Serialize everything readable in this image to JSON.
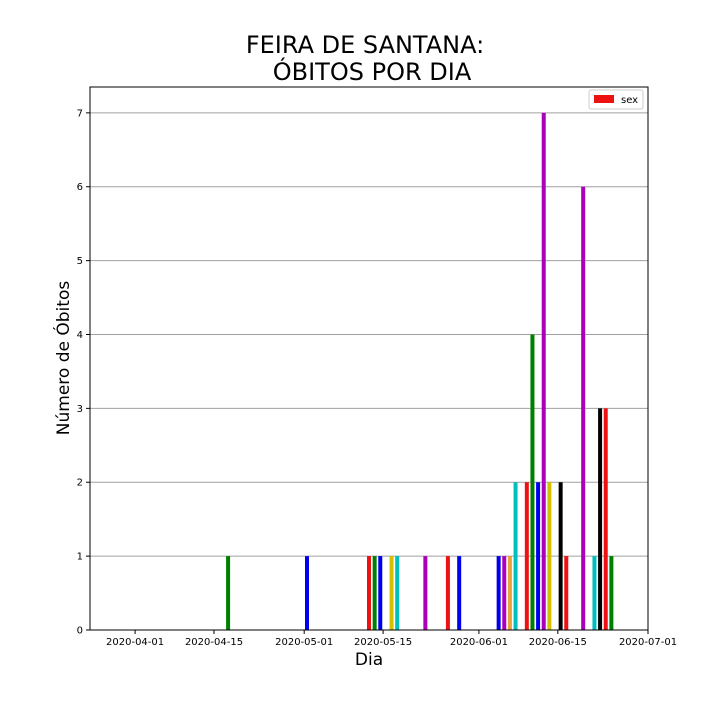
{
  "chart_data": {
    "type": "bar",
    "title_lines": [
      "FEIRA DE SANTANA:",
      "ÓBITOS POR DIA"
    ],
    "xlabel": "Dia",
    "ylabel": "Número de Óbitos",
    "x_ticks": [
      "2020-04-01",
      "2020-04-15",
      "2020-05-01",
      "2020-05-15",
      "2020-06-01",
      "2020-06-15",
      "2020-07-01"
    ],
    "y_ticks": [
      "0",
      "1",
      "2",
      "3",
      "4",
      "5",
      "6",
      "7"
    ],
    "xlim": [
      "2020-03-24",
      "2020-07-01"
    ],
    "ylim": [
      0,
      7.35
    ],
    "grid": "horizontal",
    "legend": {
      "label": "sex",
      "color": "#ee1111",
      "placement": "top-right"
    },
    "bar_colors": {
      "g": "#008000",
      "b": "#0000ee",
      "r": "#ee1111",
      "c": "#00bfbf",
      "m": "#aa00bb",
      "y": "#d4c000",
      "k": "#000000",
      "orange": "#e8a33c"
    },
    "bars": [
      {
        "date": "2020-04-17",
        "value": 1,
        "color": "g"
      },
      {
        "date": "2020-05-01",
        "value": 1,
        "color": "b"
      },
      {
        "date": "2020-05-12",
        "value": 1,
        "color": "r"
      },
      {
        "date": "2020-05-13",
        "value": 1,
        "color": "g"
      },
      {
        "date": "2020-05-14",
        "value": 1,
        "color": "b"
      },
      {
        "date": "2020-05-16",
        "value": 1,
        "color": "y"
      },
      {
        "date": "2020-05-17",
        "value": 1,
        "color": "c"
      },
      {
        "date": "2020-05-22",
        "value": 1,
        "color": "m"
      },
      {
        "date": "2020-05-26",
        "value": 1,
        "color": "r"
      },
      {
        "date": "2020-05-28",
        "value": 1,
        "color": "b"
      },
      {
        "date": "2020-06-04",
        "value": 1,
        "color": "b"
      },
      {
        "date": "2020-06-05",
        "value": 1,
        "color": "m"
      },
      {
        "date": "2020-06-06",
        "value": 1,
        "color": "orange"
      },
      {
        "date": "2020-06-07",
        "value": 2,
        "color": "c"
      },
      {
        "date": "2020-06-09",
        "value": 2,
        "color": "r"
      },
      {
        "date": "2020-06-10",
        "value": 4,
        "color": "g"
      },
      {
        "date": "2020-06-11",
        "value": 2,
        "color": "b"
      },
      {
        "date": "2020-06-12",
        "value": 7,
        "color": "m"
      },
      {
        "date": "2020-06-13",
        "value": 2,
        "color": "y"
      },
      {
        "date": "2020-06-15",
        "value": 2,
        "color": "k"
      },
      {
        "date": "2020-06-16",
        "value": 1,
        "color": "r"
      },
      {
        "date": "2020-06-19",
        "value": 6,
        "color": "m"
      },
      {
        "date": "2020-06-21",
        "value": 1,
        "color": "c"
      },
      {
        "date": "2020-06-22",
        "value": 3,
        "color": "k"
      },
      {
        "date": "2020-06-23",
        "value": 3,
        "color": "r"
      },
      {
        "date": "2020-06-24",
        "value": 1,
        "color": "g"
      }
    ]
  }
}
